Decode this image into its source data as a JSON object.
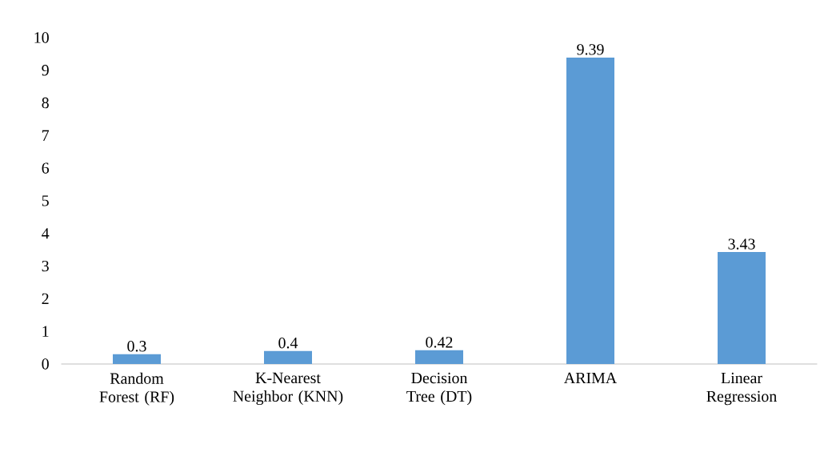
{
  "chart_data": {
    "type": "bar",
    "categories": [
      "Random Forest (RF)",
      "K-Nearest Neighbor (KNN)",
      "Decision Tree (DT)",
      "ARIMA",
      "Linear Regression"
    ],
    "values": [
      0.3,
      0.4,
      0.42,
      9.39,
      3.43
    ],
    "color": "#5b9bd5",
    "ylim": [
      0,
      10
    ],
    "yticks": [
      0,
      1,
      2,
      3,
      4,
      5,
      6,
      7,
      8,
      9,
      10
    ],
    "data_labels": true,
    "grid": false
  }
}
